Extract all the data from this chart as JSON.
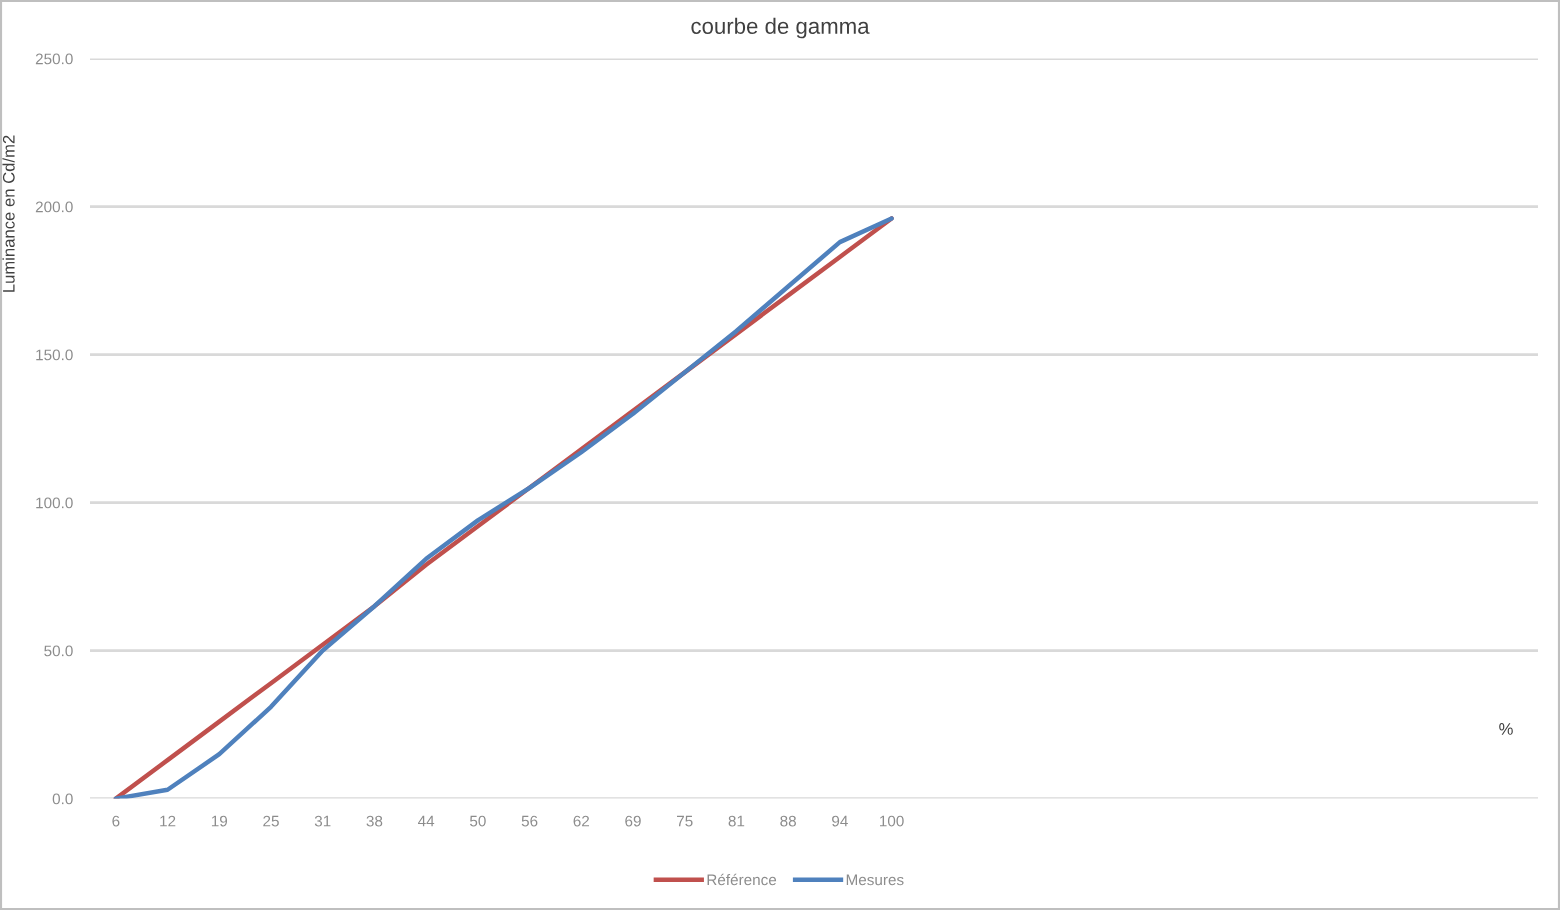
{
  "chart_data": {
    "type": "line",
    "title": "courbe de gamma",
    "xlabel": "%",
    "ylabel": "Luminance en Cd/m2",
    "categories": [
      "6",
      "12",
      "19",
      "25",
      "31",
      "38",
      "44",
      "50",
      "56",
      "62",
      "69",
      "75",
      "81",
      "88",
      "94",
      "100",
      null,
      null,
      null,
      null,
      null,
      null,
      null,
      null,
      null,
      null,
      null,
      null
    ],
    "series": [
      {
        "name": "Référence",
        "color": "#c0504d",
        "values": [
          0,
          13,
          26,
          39,
          52,
          65,
          79,
          92,
          105,
          118,
          131,
          144,
          157,
          170,
          183,
          196,
          null,
          null,
          null,
          null,
          null,
          null,
          null,
          null,
          null,
          null,
          null,
          null
        ]
      },
      {
        "name": "Mesures",
        "color": "#4f81bd",
        "values": [
          0,
          3,
          15,
          31,
          50,
          65,
          81,
          94,
          105,
          117,
          130,
          144,
          158,
          173,
          188,
          196,
          null,
          null,
          null,
          null,
          null,
          null,
          null,
          null,
          null,
          null,
          null,
          null
        ]
      }
    ],
    "ylim": [
      0,
      250
    ],
    "yticks": [
      {
        "value": 0,
        "label": "0.0"
      },
      {
        "value": 50,
        "label": "50.0"
      },
      {
        "value": 100,
        "label": "100.0"
      },
      {
        "value": 150,
        "label": "150.0"
      },
      {
        "value": 200,
        "label": "200.0"
      },
      {
        "value": 250,
        "label": "250.0"
      }
    ],
    "grid": "y",
    "legend": "bottom",
    "marker": "none",
    "line_style": "solid"
  }
}
